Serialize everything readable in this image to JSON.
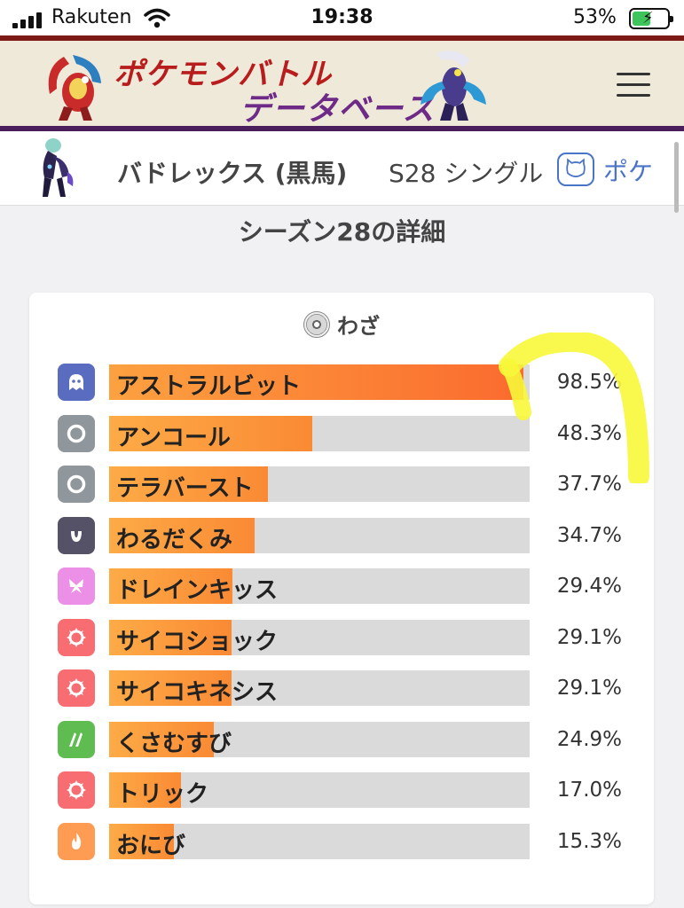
{
  "status_bar": {
    "carrier": "Rakuten",
    "time": "19:38",
    "battery": "53%"
  },
  "header": {
    "logo_line1": "ポケモンバトル",
    "logo_line2": "データベース"
  },
  "pokemon_bar": {
    "name": "バドレックス (黒馬)",
    "season": "S28 シングル",
    "tab_label": "ポケ"
  },
  "section_title": "シーズン28の詳細",
  "moves_card": {
    "title": "わざ",
    "moves": [
      {
        "name": "アストラルビット",
        "percent": "98.5%",
        "value": 98.5,
        "type_icon": "ghost-icon",
        "type_color": "#5a6cc0"
      },
      {
        "name": "アンコール",
        "percent": "48.3%",
        "value": 48.3,
        "type_icon": "normal-icon",
        "type_color": "#8f979d"
      },
      {
        "name": "テラバースト",
        "percent": "37.7%",
        "value": 37.7,
        "type_icon": "normal-icon",
        "type_color": "#8f979d"
      },
      {
        "name": "わるだくみ",
        "percent": "34.7%",
        "value": 34.7,
        "type_icon": "dark-icon",
        "type_color": "#555166"
      },
      {
        "name": "ドレインキッス",
        "percent": "29.4%",
        "value": 29.4,
        "type_icon": "fairy-icon",
        "type_color": "#ec8fe6"
      },
      {
        "name": "サイコショック",
        "percent": "29.1%",
        "value": 29.1,
        "type_icon": "psychic-icon",
        "type_color": "#f76d72"
      },
      {
        "name": "サイコキネシス",
        "percent": "29.1%",
        "value": 29.1,
        "type_icon": "psychic-icon",
        "type_color": "#f76d72"
      },
      {
        "name": "くさむすび",
        "percent": "24.9%",
        "value": 24.9,
        "type_icon": "grass-icon",
        "type_color": "#5fbc51"
      },
      {
        "name": "トリック",
        "percent": "17.0%",
        "value": 17.0,
        "type_icon": "psychic-icon",
        "type_color": "#f76d72"
      },
      {
        "name": "おにび",
        "percent": "15.3%",
        "value": 15.3,
        "type_icon": "fire-icon",
        "type_color": "#ff9c54"
      }
    ]
  },
  "colors": {
    "bar_start": "#fca140",
    "bar_end": "#fb6b2e",
    "header_top": "#7d1a18",
    "header_bottom": "#4b1f5c",
    "link_blue": "#4a74c8",
    "highlight": "#f7f73a"
  }
}
